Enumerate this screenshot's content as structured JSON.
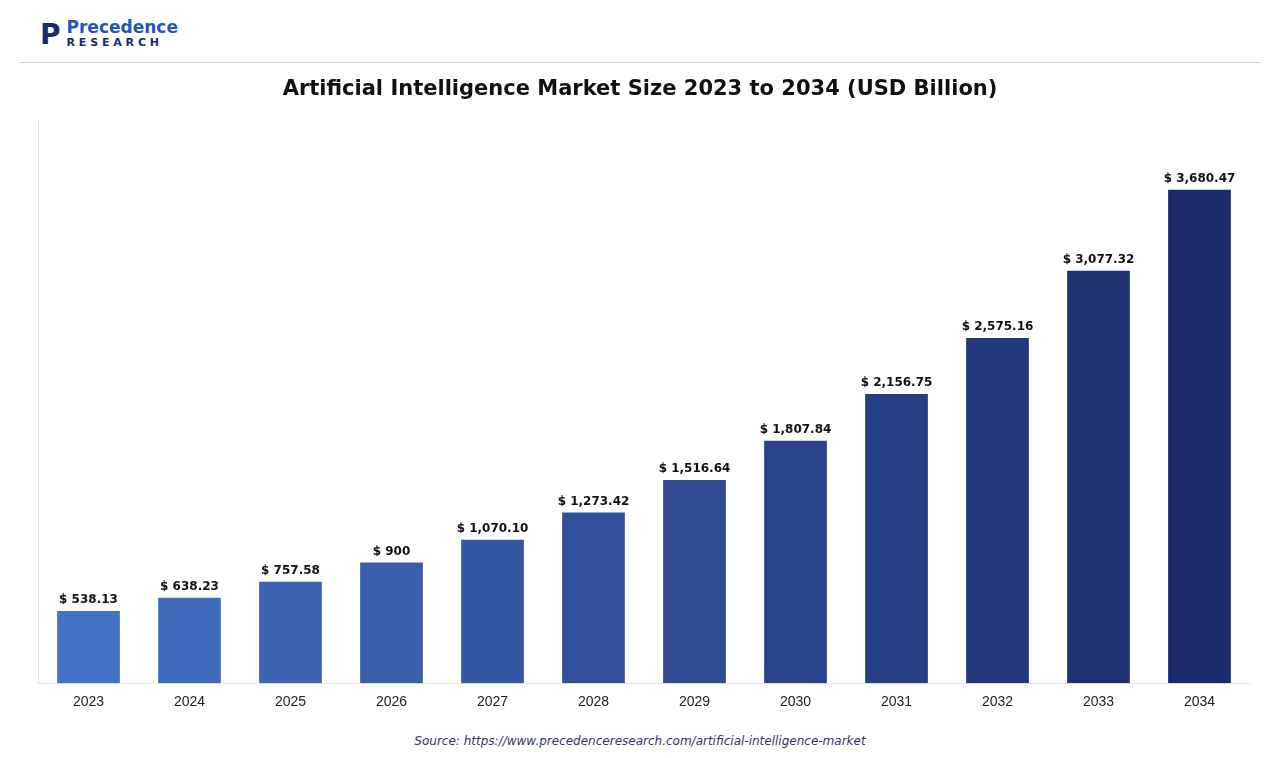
{
  "chart_data": {
    "type": "bar",
    "title": "Artificial Intelligence Market Size 2023 to 2034 (USD Billion)",
    "categories": [
      "2023",
      "2024",
      "2025",
      "2026",
      "2027",
      "2028",
      "2029",
      "2030",
      "2031",
      "2032",
      "2033",
      "2034"
    ],
    "values": [
      538.13,
      638.23,
      757.58,
      900,
      1070.1,
      1273.42,
      1516.64,
      1807.84,
      2156.75,
      2575.16,
      3077.32,
      3680.47
    ],
    "value_labels": [
      "$ 538.13",
      "$ 638.23",
      "$ 757.58",
      "$ 900",
      "$ 1,070.10",
      "$ 1,273.42",
      "$ 1,516.64",
      "$ 1,807.84",
      "$ 2,156.75",
      "$ 2,575.16",
      "$ 3,077.32",
      "$ 3,680.47"
    ],
    "colors": [
      "#4472C4",
      "#406BBC",
      "#3D65B4",
      "#395EAC",
      "#3558A4",
      "#31519C",
      "#2E4B93",
      "#2A448B",
      "#263E83",
      "#22377B",
      "#1F3173",
      "#1B2A6B"
    ],
    "data_labels": true,
    "ylim": [
      0,
      4200
    ],
    "tick_labels": "x",
    "grid": false,
    "annotations": [
      "P",
      "Precedence",
      "R E S E A R C H",
      "Source: https://www.precedenceresearch.com/artificial-intelligence-market"
    ]
  }
}
